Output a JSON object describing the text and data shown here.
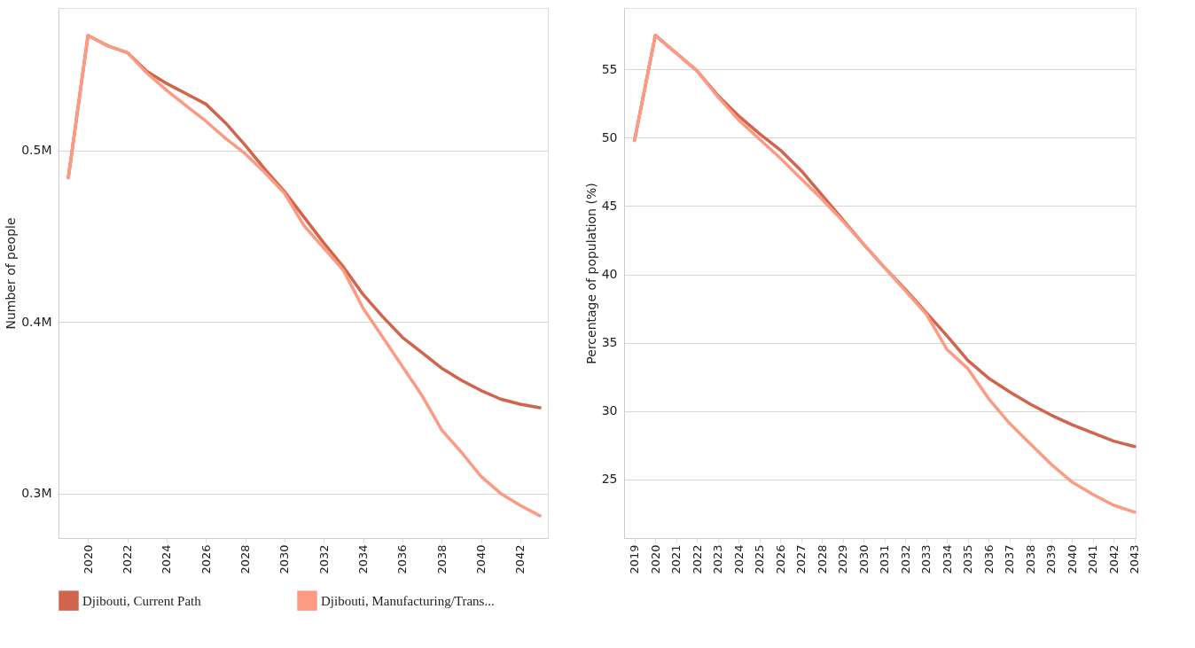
{
  "chart_data": [
    {
      "type": "line",
      "ylabel": "Number of people",
      "x": [
        2019,
        2020,
        2021,
        2022,
        2023,
        2024,
        2025,
        2026,
        2027,
        2028,
        2029,
        2030,
        2031,
        2032,
        2033,
        2034,
        2035,
        2036,
        2037,
        2038,
        2039,
        2040,
        2041,
        2042,
        2043
      ],
      "series": [
        {
          "name": "Djibouti, Current Path",
          "color": "#d0644c",
          "values": [
            0.484,
            0.567,
            0.561,
            0.557,
            0.546,
            0.539,
            0.533,
            0.527,
            0.516,
            0.503,
            0.489,
            0.476,
            0.461,
            0.446,
            0.432,
            0.416,
            0.403,
            0.391,
            0.382,
            0.373,
            0.366,
            0.36,
            0.355,
            0.352,
            0.35
          ]
        },
        {
          "name": "Djibouti, Manufacturing/Trans...",
          "color": "#fc9a84",
          "values": [
            0.484,
            0.567,
            0.561,
            0.557,
            0.545,
            0.535,
            0.526,
            0.517,
            0.507,
            0.498,
            0.487,
            0.475,
            0.456,
            0.443,
            0.43,
            0.408,
            0.391,
            0.374,
            0.357,
            0.337,
            0.324,
            0.31,
            0.3,
            0.293,
            0.287
          ]
        }
      ],
      "xlim": [
        2018.5,
        2043.4
      ],
      "xticks": [
        2020,
        2022,
        2024,
        2026,
        2028,
        2030,
        2032,
        2034,
        2036,
        2038,
        2040,
        2042
      ],
      "ylim": [
        0.274,
        0.583
      ],
      "yticks": [
        {
          "value": 0.3,
          "label": "0.3M"
        },
        {
          "value": 0.4,
          "label": "0.4M"
        },
        {
          "value": 0.5,
          "label": "0.5M"
        }
      ],
      "grid": "y",
      "legend": "bottom left",
      "line_style": "solid"
    },
    {
      "type": "line",
      "ylabel": "Percentage of population (%)",
      "x": [
        2019,
        2020,
        2021,
        2022,
        2023,
        2024,
        2025,
        2026,
        2027,
        2028,
        2029,
        2030,
        2031,
        2032,
        2033,
        2034,
        2035,
        2036,
        2037,
        2038,
        2039,
        2040,
        2041,
        2042,
        2043
      ],
      "series": [
        {
          "color": "#d0644c",
          "values": [
            49.8,
            57.5,
            56.2,
            54.9,
            53.1,
            51.6,
            50.3,
            49.1,
            47.6,
            45.8,
            44.0,
            42.2,
            40.5,
            38.9,
            37.2,
            35.5,
            33.7,
            32.4,
            31.4,
            30.5,
            29.7,
            29.0,
            28.4,
            27.8,
            27.4
          ]
        },
        {
          "color": "#fc9a84",
          "values": [
            49.8,
            57.5,
            56.2,
            54.9,
            53.0,
            51.3,
            49.9,
            48.5,
            47.0,
            45.5,
            43.9,
            42.2,
            40.5,
            38.8,
            37.1,
            34.5,
            33.1,
            30.9,
            29.1,
            27.6,
            26.1,
            24.8,
            23.9,
            23.1,
            22.6
          ]
        }
      ],
      "xlim": [
        2018.5,
        2043.05
      ],
      "xticks": [
        2019,
        2020,
        2021,
        2022,
        2023,
        2024,
        2025,
        2026,
        2027,
        2028,
        2029,
        2030,
        2031,
        2032,
        2033,
        2034,
        2035,
        2036,
        2037,
        2038,
        2039,
        2040,
        2041,
        2042,
        2043
      ],
      "ylim": [
        20.7,
        59.5
      ],
      "yticks": [
        25,
        30,
        35,
        40,
        45,
        50,
        55
      ],
      "grid": "y",
      "line_style": "solid"
    }
  ]
}
